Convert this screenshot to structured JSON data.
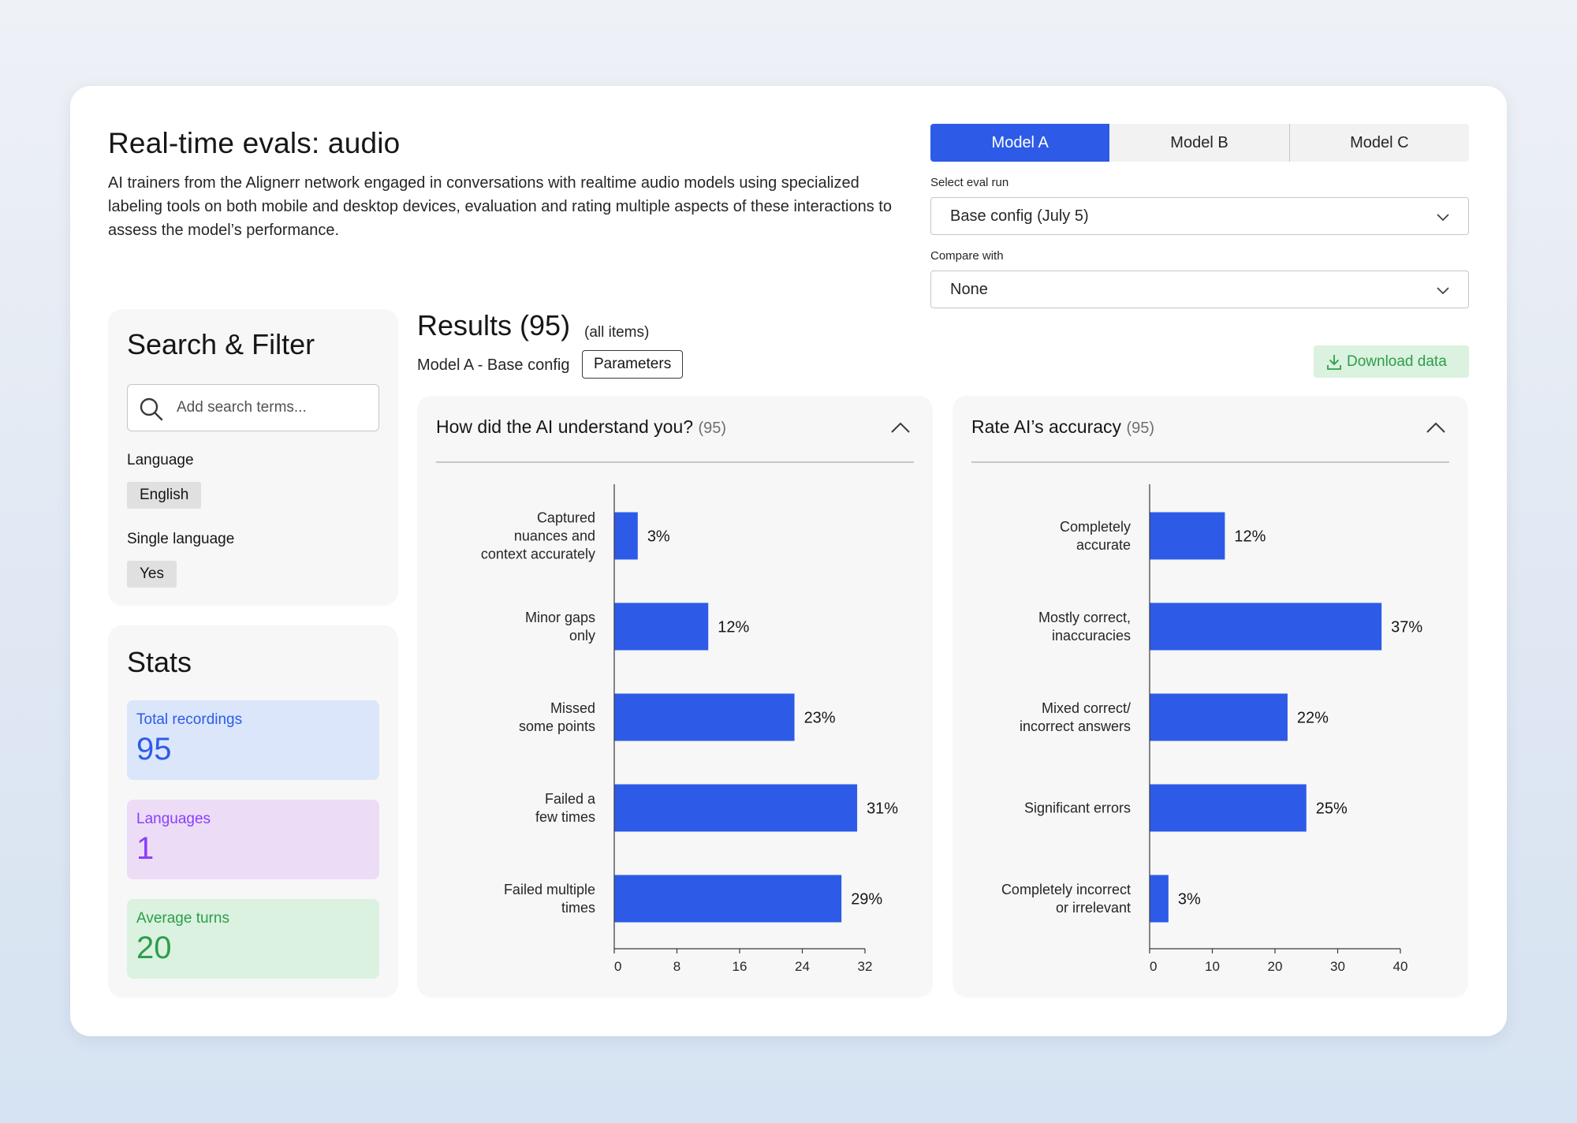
{
  "header": {
    "title": "Real-time evals: audio",
    "description": "AI trainers from the Alignerr network engaged in conversations with realtime audio models using specialized labeling tools on both mobile and desktop devices, evaluation and rating multiple aspects of these interactions to assess the model’s performance."
  },
  "model_tabs": [
    {
      "label": "Model A",
      "active": true
    },
    {
      "label": "Model B",
      "active": false
    },
    {
      "label": "Model C",
      "active": false
    }
  ],
  "eval_run": {
    "label": "Select eval run",
    "value": "Base config (July 5)"
  },
  "compare": {
    "label": "Compare with",
    "value": "None"
  },
  "filter": {
    "title": "Search & Filter",
    "search_placeholder": "Add search terms...",
    "language_label": "Language",
    "language_tag": "English",
    "single_language_label": "Single language",
    "single_language_tag": "Yes"
  },
  "stats": {
    "title": "Stats",
    "items": [
      {
        "label": "Total recordings",
        "value": "95"
      },
      {
        "label": "Languages",
        "value": "1"
      },
      {
        "label": "Average turns",
        "value": "20"
      }
    ]
  },
  "results": {
    "title": "Results (95)",
    "subtitle": "(all items)",
    "model_config": "Model A - Base config",
    "parameters_label": "Parameters",
    "download_label": "Download data"
  },
  "colors": {
    "accent": "#2d5be8",
    "bar": "#2d5be8"
  },
  "chart_data": [
    {
      "type": "bar",
      "orientation": "horizontal",
      "title": "How did the AI understand you?",
      "count": "(95)",
      "categories": [
        [
          "Captured",
          "nuances and",
          "context accurately"
        ],
        [
          "Minor gaps",
          "only"
        ],
        [
          "Missed",
          "some points"
        ],
        [
          "Failed a",
          "few times"
        ],
        [
          "Failed multiple",
          "times"
        ]
      ],
      "values": [
        3,
        12,
        23,
        31,
        29
      ],
      "value_labels": [
        "3%",
        "12%",
        "23%",
        "31%",
        "29%"
      ],
      "xlim": [
        0,
        32
      ],
      "xticks": [
        "0",
        "8",
        "16",
        "24",
        "32"
      ]
    },
    {
      "type": "bar",
      "orientation": "horizontal",
      "title": "Rate AI’s accuracy",
      "count": "(95)",
      "categories": [
        [
          "Completely",
          "accurate"
        ],
        [
          "Mostly correct,",
          "inaccuracies"
        ],
        [
          "Mixed correct/",
          "incorrect answers"
        ],
        [
          "Significant errors"
        ],
        [
          "Completely incorrect",
          "or irrelevant"
        ]
      ],
      "values": [
        12,
        37,
        22,
        25,
        3
      ],
      "value_labels": [
        "12%",
        "37%",
        "22%",
        "25%",
        "3%"
      ],
      "xlim": [
        0,
        40
      ],
      "xticks": [
        "0",
        "10",
        "20",
        "30",
        "40"
      ]
    }
  ]
}
